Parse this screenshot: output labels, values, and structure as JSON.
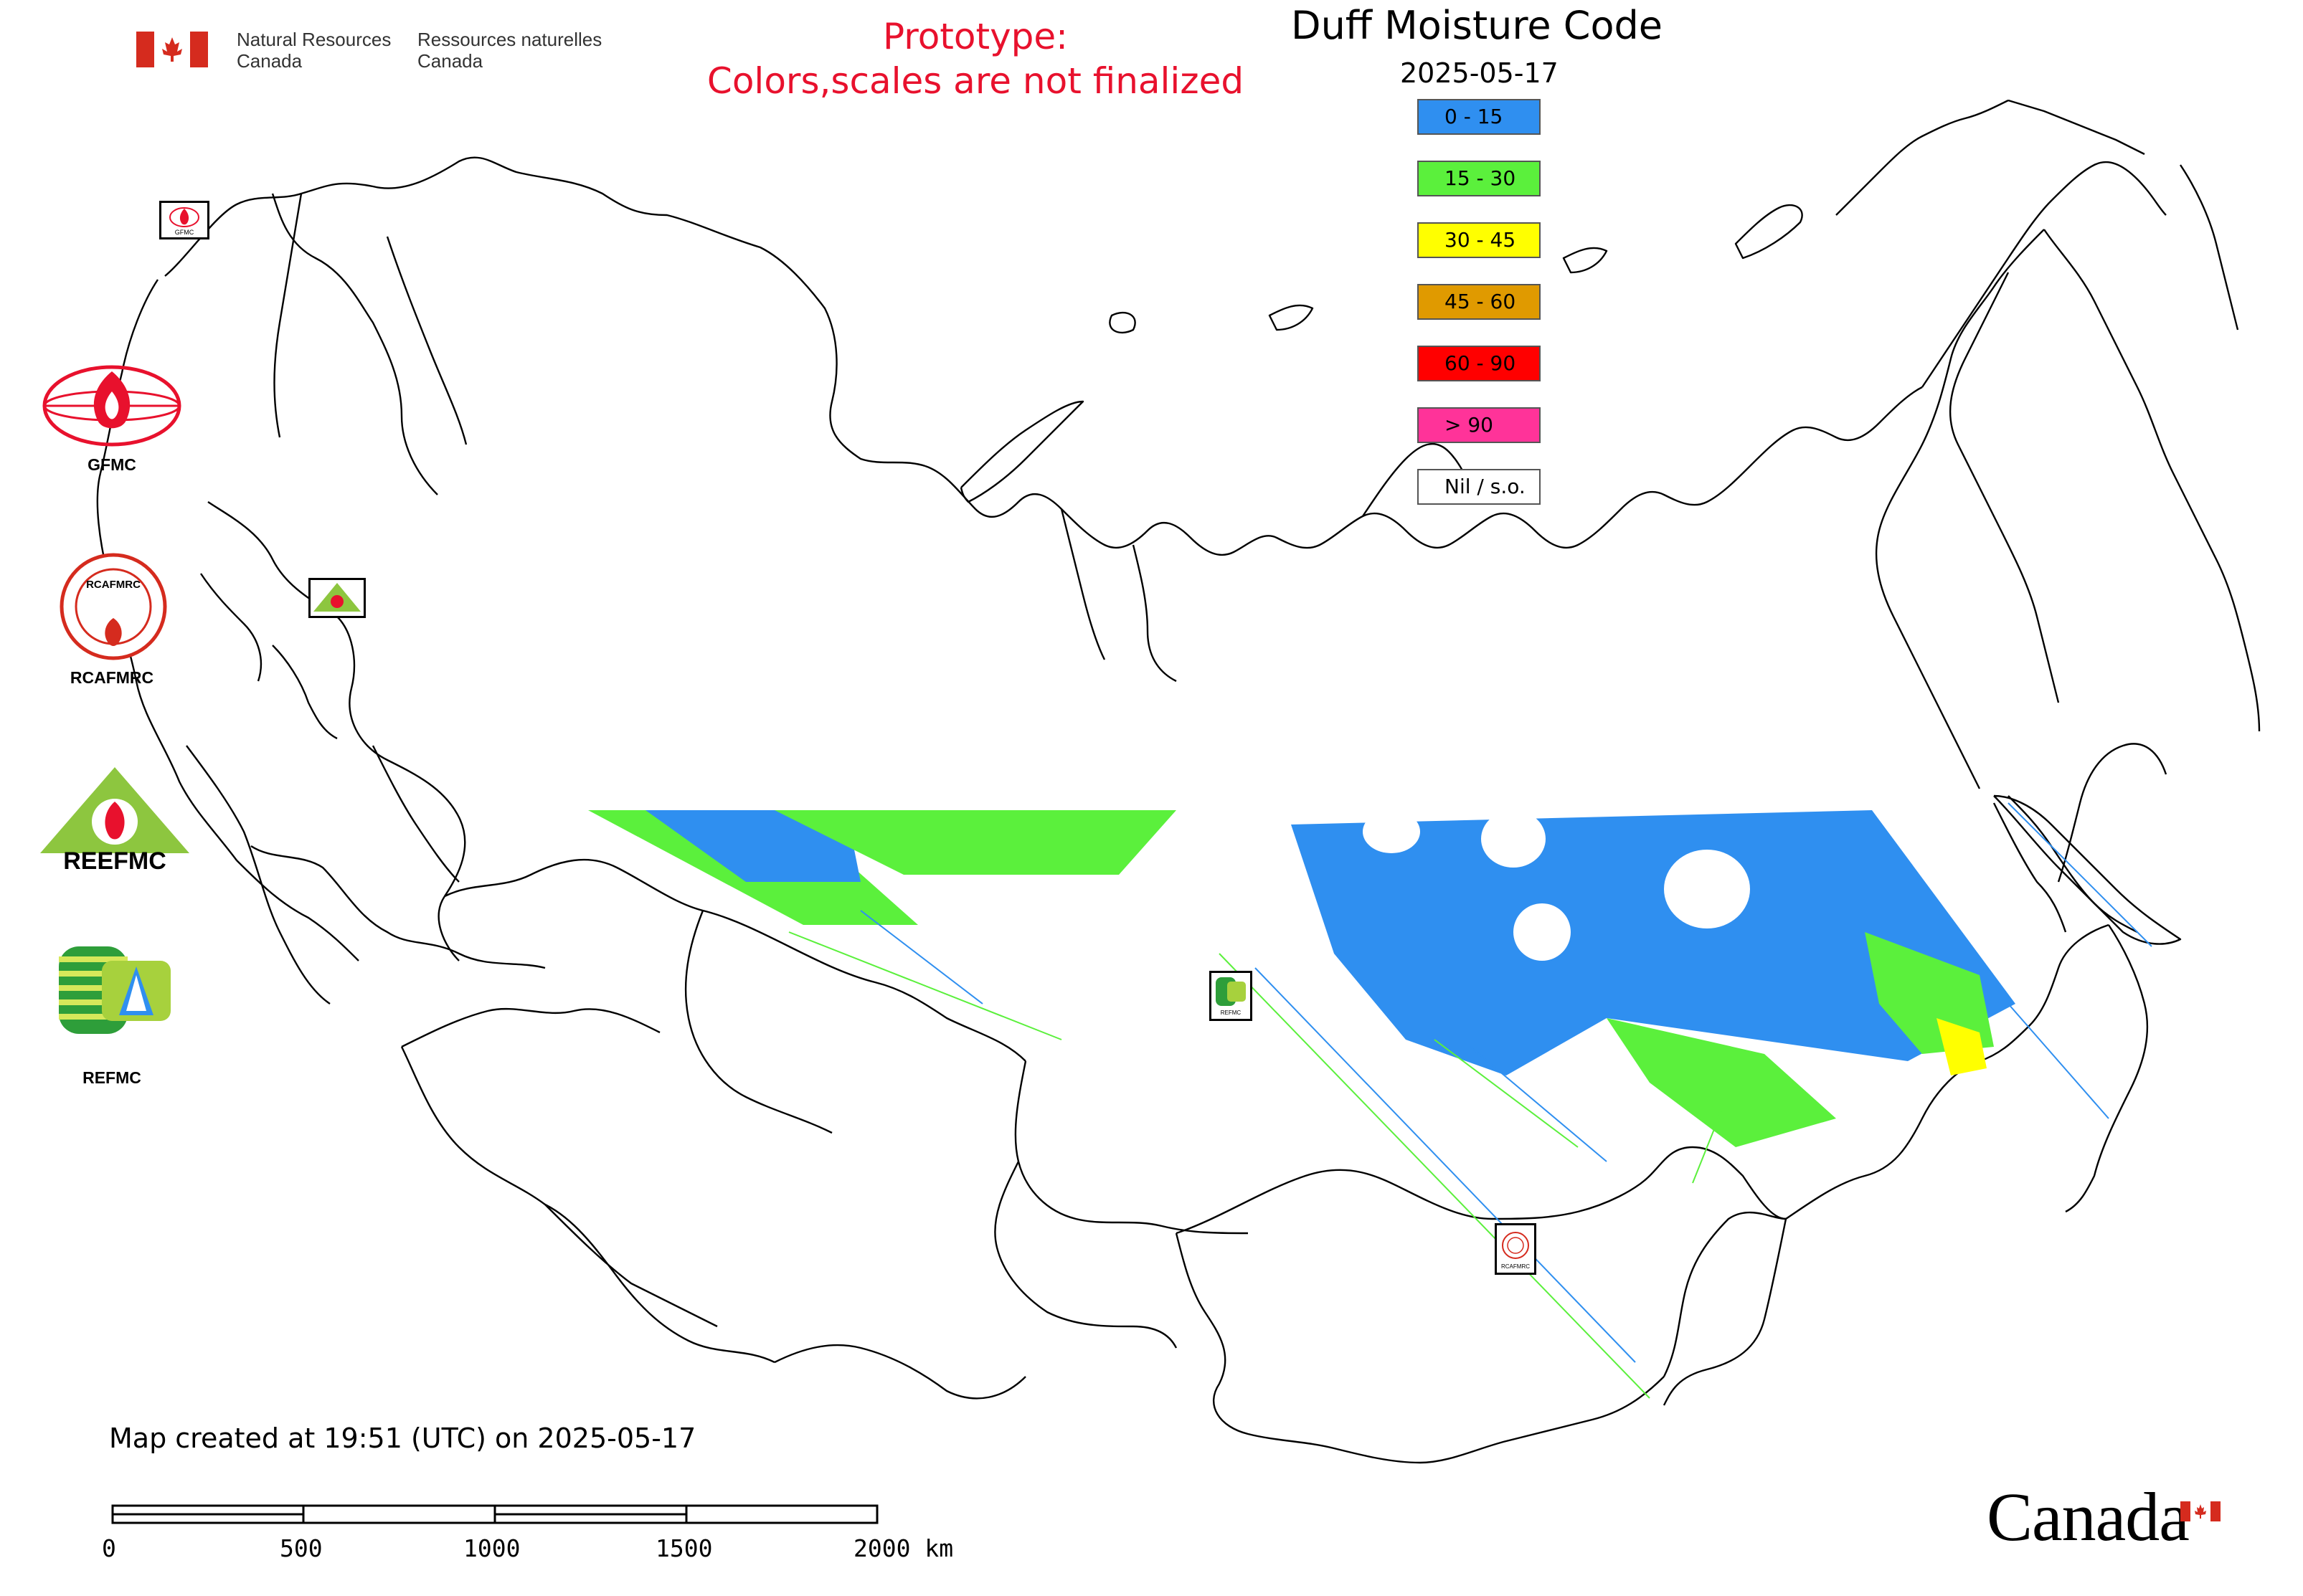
{
  "header": {
    "nrc_en_line1": "Natural Resources",
    "nrc_en_line2": "Canada",
    "nrc_fr_line1": "Ressources naturelles",
    "nrc_fr_line2": "Canada",
    "prototype_line1": "Prototype:",
    "prototype_line2": "Colors,scales are not finalized",
    "title": "Duff Moisture Code",
    "date": "2025-05-17"
  },
  "legend": {
    "items": [
      {
        "label": "0 - 15",
        "color": "#2f8ff0"
      },
      {
        "label": "15 - 30",
        "color": "#5bf03c"
      },
      {
        "label": "30 - 45",
        "color": "#ffff00"
      },
      {
        "label": "45 - 60",
        "color": "#e09a00"
      },
      {
        "label": "60 - 90",
        "color": "#ff0000"
      },
      {
        "label": "> 90",
        "color": "#ff3399"
      },
      {
        "label": "Nil / s.o.",
        "color": "#ffffff"
      }
    ]
  },
  "organizations": {
    "gfmc_label": "GFMC",
    "rcafmrc_label": "RCAFMRC",
    "refmc_label": "REFMC",
    "reefmc_logo_text": "REEFMC",
    "rcafmrc_logo_text": "RCAFMRC",
    "gfmc_marker_text": "GFMC",
    "refmc_marker_text": "REFMC",
    "rcafmrc_marker_text": "RCAFMRC"
  },
  "footer": {
    "created": "Map created at 19:51 (UTC) on 2025-05-17",
    "scale_labels": [
      "0",
      "500",
      "1000",
      "1500",
      "2000 km"
    ],
    "canada_wordmark": "Canada"
  },
  "colors": {
    "prototype_text": "#e8112d",
    "canada_red": "#d52b1e",
    "outline": "#000000"
  }
}
